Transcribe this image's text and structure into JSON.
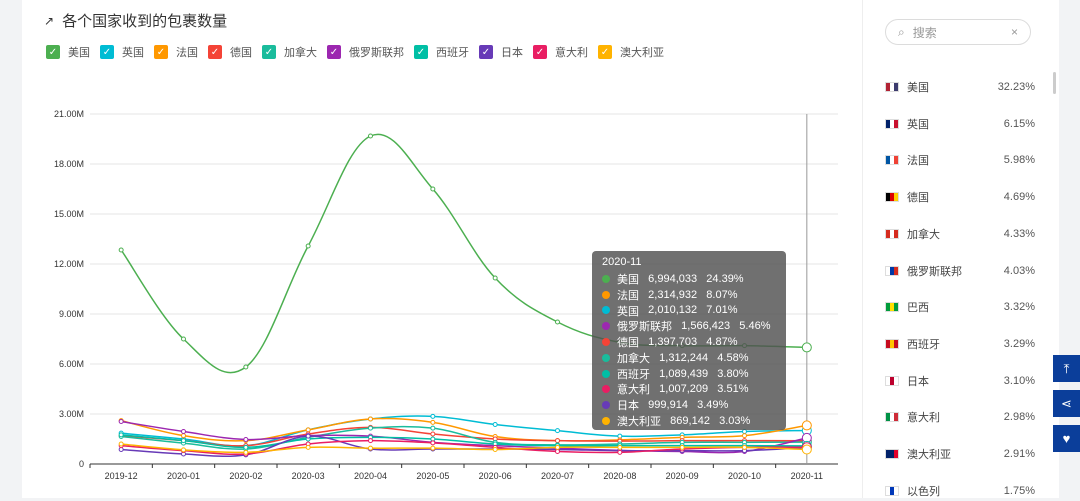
{
  "title": "各个国家收到的包裹数量",
  "chart_data": {
    "type": "line",
    "title": "各个国家收到的包裹数量",
    "categories": [
      "2019-12",
      "2020-01",
      "2020-02",
      "2020-03",
      "2020-04",
      "2020-05",
      "2020-06",
      "2020-07",
      "2020-08",
      "2020-09",
      "2020-10",
      "2020-11"
    ],
    "yticks": [
      "0",
      "3.00M",
      "6.00M",
      "9.00M",
      "12.00M",
      "15.00M",
      "18.00M",
      "21.00M"
    ],
    "ylim": [
      0,
      21000000
    ],
    "series": [
      {
        "name": "美国",
        "color": "#4caf50",
        "values": [
          12.84,
          7.5,
          5.82,
          13.08,
          19.68,
          16.5,
          11.16,
          8.52,
          7.3,
          7.1,
          7.1,
          6.994
        ]
      },
      {
        "name": "英国",
        "color": "#00bcd4",
        "values": [
          1.85,
          1.5,
          1.1,
          2.05,
          2.7,
          2.86,
          2.37,
          2.0,
          1.67,
          1.75,
          1.95,
          2.01
        ]
      },
      {
        "name": "法国",
        "color": "#ff9800",
        "values": [
          2.6,
          1.7,
          1.4,
          2.05,
          2.7,
          2.5,
          1.65,
          1.4,
          1.45,
          1.6,
          1.7,
          2.315
        ]
      },
      {
        "name": "德国",
        "color": "#f44336",
        "values": [
          1.7,
          1.4,
          1.1,
          1.8,
          2.2,
          1.8,
          1.5,
          1.4,
          1.37,
          1.4,
          1.4,
          1.398
        ]
      },
      {
        "name": "加拿大",
        "color": "#1abc9c",
        "values": [
          1.65,
          1.25,
          0.9,
          1.6,
          2.15,
          2.15,
          1.3,
          1.15,
          1.2,
          1.3,
          1.3,
          1.312
        ]
      },
      {
        "name": "俄罗斯联邦",
        "color": "#9c27b0",
        "values": [
          2.55,
          1.95,
          1.47,
          1.7,
          1.67,
          1.3,
          1.1,
          0.95,
          0.82,
          0.75,
          0.75,
          1.566
        ]
      },
      {
        "name": "西班牙",
        "color": "#00bfa5",
        "values": [
          1.75,
          1.4,
          1.0,
          1.5,
          1.6,
          1.5,
          1.2,
          1.1,
          1.1,
          1.1,
          1.1,
          1.089
        ]
      },
      {
        "name": "日本",
        "color": "#673ab7",
        "values": [
          0.87,
          0.6,
          0.55,
          1.67,
          0.9,
          0.9,
          0.9,
          0.87,
          0.8,
          0.8,
          0.8,
          1.0
        ]
      },
      {
        "name": "意大利",
        "color": "#e91e63",
        "values": [
          1.1,
          0.8,
          0.6,
          1.2,
          1.4,
          1.27,
          1.0,
          0.75,
          0.7,
          0.9,
          1.0,
          1.007
        ]
      },
      {
        "name": "澳大利亚",
        "color": "#ffb300",
        "values": [
          1.2,
          0.85,
          0.7,
          1.0,
          0.95,
          0.95,
          0.87,
          1.0,
          1.0,
          1.0,
          1.0,
          0.869
        ]
      }
    ],
    "value_unit": "M",
    "tooltip": {
      "title": "2020-11",
      "rows": [
        {
          "name": "美国",
          "value": "6,994,033",
          "pct": "24.39%",
          "color": "#4caf50"
        },
        {
          "name": "法国",
          "value": "2,314,932",
          "pct": "8.07%",
          "color": "#ff9800"
        },
        {
          "name": "英国",
          "value": "2,010,132",
          "pct": "7.01%",
          "color": "#00bcd4"
        },
        {
          "name": "俄罗斯联邦",
          "value": "1,566,423",
          "pct": "5.46%",
          "color": "#9c27b0"
        },
        {
          "name": "德国",
          "value": "1,397,703",
          "pct": "4.87%",
          "color": "#f44336"
        },
        {
          "name": "加拿大",
          "value": "1,312,244",
          "pct": "4.58%",
          "color": "#1abc9c"
        },
        {
          "name": "西班牙",
          "value": "1,089,439",
          "pct": "3.80%",
          "color": "#00bfa5"
        },
        {
          "name": "意大利",
          "value": "1,007,209",
          "pct": "3.51%",
          "color": "#e91e63"
        },
        {
          "name": "日本",
          "value": "999,914",
          "pct": "3.49%",
          "color": "#673ab7"
        },
        {
          "name": "澳大利亚",
          "value": "869,142",
          "pct": "3.03%",
          "color": "#ffb300"
        }
      ]
    }
  },
  "sidebar": {
    "search_placeholder": "搜索",
    "items": [
      {
        "name": "美国",
        "pct": "32.23%",
        "flag": [
          "#b22234",
          "#fff",
          "#3c3b6e"
        ]
      },
      {
        "name": "英国",
        "pct": "6.15%",
        "flag": [
          "#012169",
          "#fff",
          "#c8102e"
        ]
      },
      {
        "name": "法国",
        "pct": "5.98%",
        "flag": [
          "#0055a4",
          "#fff",
          "#ef4135"
        ]
      },
      {
        "name": "德国",
        "pct": "4.69%",
        "flag": [
          "#000",
          "#dd0000",
          "#ffce00"
        ]
      },
      {
        "name": "加拿大",
        "pct": "4.33%",
        "flag": [
          "#d52b1e",
          "#fff",
          "#d52b1e"
        ]
      },
      {
        "name": "俄罗斯联邦",
        "pct": "4.03%",
        "flag": [
          "#fff",
          "#0039a6",
          "#d52b1e"
        ]
      },
      {
        "name": "巴西",
        "pct": "3.32%",
        "flag": [
          "#009c3b",
          "#ffdf00",
          "#009c3b"
        ]
      },
      {
        "name": "西班牙",
        "pct": "3.29%",
        "flag": [
          "#c60b1e",
          "#ffc400",
          "#c60b1e"
        ]
      },
      {
        "name": "日本",
        "pct": "3.10%",
        "flag": [
          "#fff",
          "#bc002d",
          "#fff"
        ]
      },
      {
        "name": "意大利",
        "pct": "2.98%",
        "flag": [
          "#009246",
          "#fff",
          "#ce2b37"
        ]
      },
      {
        "name": "澳大利亚",
        "pct": "2.91%",
        "flag": [
          "#012169",
          "#012169",
          "#e4002b"
        ]
      },
      {
        "name": "以色列",
        "pct": "1.75%",
        "flag": [
          "#fff",
          "#0038b8",
          "#fff"
        ]
      }
    ]
  }
}
